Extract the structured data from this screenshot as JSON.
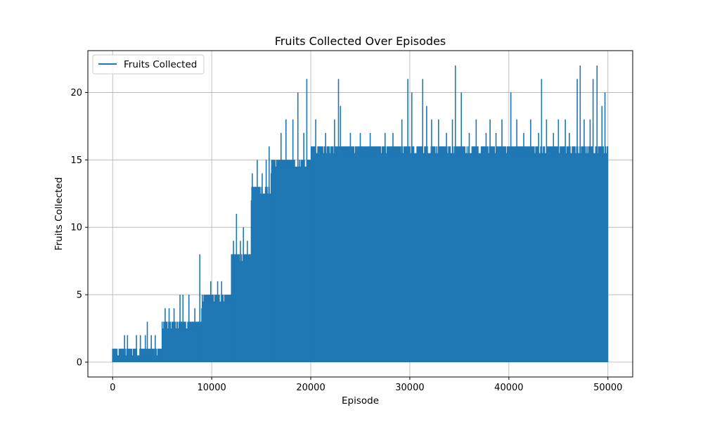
{
  "chart_data": {
    "type": "line",
    "title": "Fruits Collected Over Episodes",
    "xlabel": "Episode",
    "ylabel": "Fruits Collected",
    "xlim": [
      -2500,
      52500
    ],
    "ylim": [
      -1.1,
      23.1
    ],
    "x_ticks": [
      0,
      10000,
      20000,
      30000,
      40000,
      50000
    ],
    "x_tick_labels": [
      "0",
      "10000",
      "20000",
      "30000",
      "40000",
      "50000"
    ],
    "y_ticks": [
      0,
      5,
      10,
      15,
      20
    ],
    "y_tick_labels": [
      "0",
      "5",
      "10",
      "15",
      "20"
    ],
    "grid": true,
    "legend_position": "top-left",
    "series": [
      {
        "name": "Fruits Collected",
        "color": "#1f77b4",
        "x_range": [
          0,
          50000
        ],
        "min_value": 0,
        "segments": [
          {
            "x_start": 0,
            "x_end": 5000,
            "typical_max": 1,
            "peaks": [
              [
                1200,
                2
              ],
              [
                1500,
                2
              ],
              [
                2400,
                2
              ],
              [
                2800,
                2
              ],
              [
                3300,
                2
              ],
              [
                3500,
                3
              ],
              [
                3900,
                2
              ],
              [
                4300,
                2
              ]
            ]
          },
          {
            "x_start": 5000,
            "x_end": 9000,
            "typical_max": 3,
            "peaks": [
              [
                5300,
                4
              ],
              [
                5700,
                4
              ],
              [
                6200,
                4
              ],
              [
                6800,
                5
              ],
              [
                7100,
                5
              ],
              [
                7700,
                5
              ],
              [
                8300,
                4
              ],
              [
                8800,
                8
              ]
            ]
          },
          {
            "x_start": 9000,
            "x_end": 12000,
            "typical_max": 5,
            "peaks": [
              [
                9300,
                5
              ],
              [
                9900,
                6
              ],
              [
                10600,
                6
              ],
              [
                11000,
                6
              ],
              [
                11400,
                5
              ]
            ]
          },
          {
            "x_start": 12000,
            "x_end": 14000,
            "typical_max": 8,
            "peaks": [
              [
                12200,
                9
              ],
              [
                12500,
                11
              ],
              [
                12900,
                9
              ],
              [
                13200,
                10
              ],
              [
                13600,
                9
              ]
            ]
          },
          {
            "x_start": 14000,
            "x_end": 16000,
            "typical_max": 13,
            "peaks": [
              [
                14100,
                14
              ],
              [
                14600,
                15
              ],
              [
                15100,
                14
              ],
              [
                15500,
                15
              ],
              [
                15800,
                16
              ]
            ]
          },
          {
            "x_start": 16000,
            "x_end": 20000,
            "typical_max": 15,
            "peaks": [
              [
                17000,
                17
              ],
              [
                17500,
                18
              ],
              [
                18200,
                18
              ],
              [
                18700,
                20
              ],
              [
                19300,
                17
              ],
              [
                19600,
                21
              ]
            ]
          },
          {
            "x_start": 20000,
            "x_end": 50000,
            "typical_max": 16,
            "peaks": [
              [
                20500,
                18
              ],
              [
                21500,
                17
              ],
              [
                22400,
                18
              ],
              [
                22800,
                21
              ],
              [
                23000,
                19
              ],
              [
                24000,
                17
              ],
              [
                25000,
                17
              ],
              [
                26000,
                17
              ],
              [
                27500,
                17
              ],
              [
                28300,
                17
              ],
              [
                29200,
                18
              ],
              [
                29800,
                21
              ],
              [
                30200,
                20
              ],
              [
                31300,
                21
              ],
              [
                31700,
                19
              ],
              [
                32200,
                18
              ],
              [
                32900,
                18
              ],
              [
                33700,
                17
              ],
              [
                34300,
                18
              ],
              [
                34600,
                22
              ],
              [
                35200,
                20
              ],
              [
                36000,
                17
              ],
              [
                36700,
                18
              ],
              [
                37700,
                17
              ],
              [
                38100,
                18
              ],
              [
                38700,
                17
              ],
              [
                39300,
                18
              ],
              [
                40200,
                20
              ],
              [
                40800,
                18
              ],
              [
                41500,
                17
              ],
              [
                42200,
                18
              ],
              [
                43000,
                17
              ],
              [
                43300,
                21
              ],
              [
                43800,
                18
              ],
              [
                44500,
                17
              ],
              [
                45000,
                18
              ],
              [
                45700,
                18
              ],
              [
                46100,
                17
              ],
              [
                46900,
                21
              ],
              [
                47200,
                22
              ],
              [
                47600,
                18
              ],
              [
                48200,
                18
              ],
              [
                48500,
                21
              ],
              [
                48900,
                22
              ],
              [
                49400,
                19
              ],
              [
                49700,
                20
              ]
            ]
          }
        ]
      }
    ]
  }
}
